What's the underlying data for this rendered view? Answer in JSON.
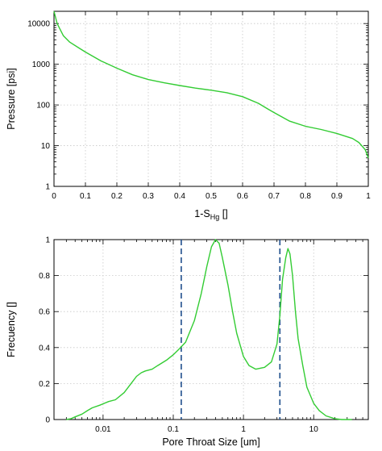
{
  "chart_data": [
    {
      "type": "line",
      "xlabel_main": "1-S",
      "xlabel_sub": "Hg",
      "xlabel_tail": " []",
      "ylabel": "Pressure [psi]",
      "xlim": [
        0,
        1
      ],
      "ylim": [
        1,
        20000
      ],
      "yscale": "log",
      "x_ticks": [
        "0",
        "0.1",
        "0.2",
        "0.3",
        "0.4",
        "0.5",
        "0.6",
        "0.7",
        "0.8",
        "0.9",
        "1"
      ],
      "y_ticks": [
        "1",
        "10",
        "100",
        "1000",
        "10000"
      ],
      "grid": true,
      "line_color": "#33cc33",
      "x": [
        0,
        0.01,
        0.03,
        0.05,
        0.08,
        0.1,
        0.15,
        0.2,
        0.25,
        0.3,
        0.35,
        0.4,
        0.45,
        0.5,
        0.55,
        0.6,
        0.65,
        0.68,
        0.7,
        0.75,
        0.8,
        0.85,
        0.9,
        0.95,
        0.97,
        0.99,
        1.0
      ],
      "y": [
        20000,
        10000,
        5000,
        3500,
        2500,
        2000,
        1200,
        800,
        550,
        420,
        350,
        300,
        260,
        230,
        200,
        160,
        110,
        80,
        65,
        40,
        30,
        25,
        20,
        15,
        12,
        8,
        5
      ]
    },
    {
      "type": "line",
      "xlabel": "Pore Throat Size [um]",
      "ylabel": "Frecuency []",
      "xlim": [
        0.002,
        60
      ],
      "ylim": [
        0,
        1
      ],
      "xscale": "log",
      "x_ticks": [
        "0.01",
        "0.1",
        "1",
        "10"
      ],
      "y_ticks": [
        "0",
        "0.2",
        "0.4",
        "0.6",
        "0.8",
        "1"
      ],
      "grid": true,
      "line_color": "#33cc33",
      "dashed_line_color": "#1f4e8c",
      "vlines": [
        0.13,
        3.3
      ],
      "x": [
        0.003,
        0.0035,
        0.004,
        0.005,
        0.006,
        0.007,
        0.009,
        0.012,
        0.015,
        0.02,
        0.025,
        0.03,
        0.035,
        0.04,
        0.05,
        0.06,
        0.08,
        0.1,
        0.12,
        0.15,
        0.2,
        0.25,
        0.3,
        0.35,
        0.4,
        0.45,
        0.5,
        0.6,
        0.7,
        0.8,
        1.0,
        1.2,
        1.5,
        2.0,
        2.5,
        3.0,
        3.3,
        3.6,
        4.0,
        4.3,
        4.6,
        5.0,
        5.5,
        6,
        7,
        8,
        10,
        12,
        15,
        20,
        25,
        30,
        35
      ],
      "y": [
        0,
        0.005,
        0.015,
        0.03,
        0.05,
        0.065,
        0.08,
        0.1,
        0.11,
        0.15,
        0.2,
        0.24,
        0.26,
        0.27,
        0.28,
        0.3,
        0.33,
        0.36,
        0.39,
        0.43,
        0.55,
        0.7,
        0.85,
        0.96,
        1.0,
        0.98,
        0.9,
        0.75,
        0.6,
        0.48,
        0.35,
        0.3,
        0.28,
        0.29,
        0.32,
        0.42,
        0.58,
        0.78,
        0.9,
        0.95,
        0.92,
        0.8,
        0.6,
        0.45,
        0.3,
        0.18,
        0.09,
        0.05,
        0.02,
        0.005,
        0,
        0,
        0
      ]
    }
  ]
}
